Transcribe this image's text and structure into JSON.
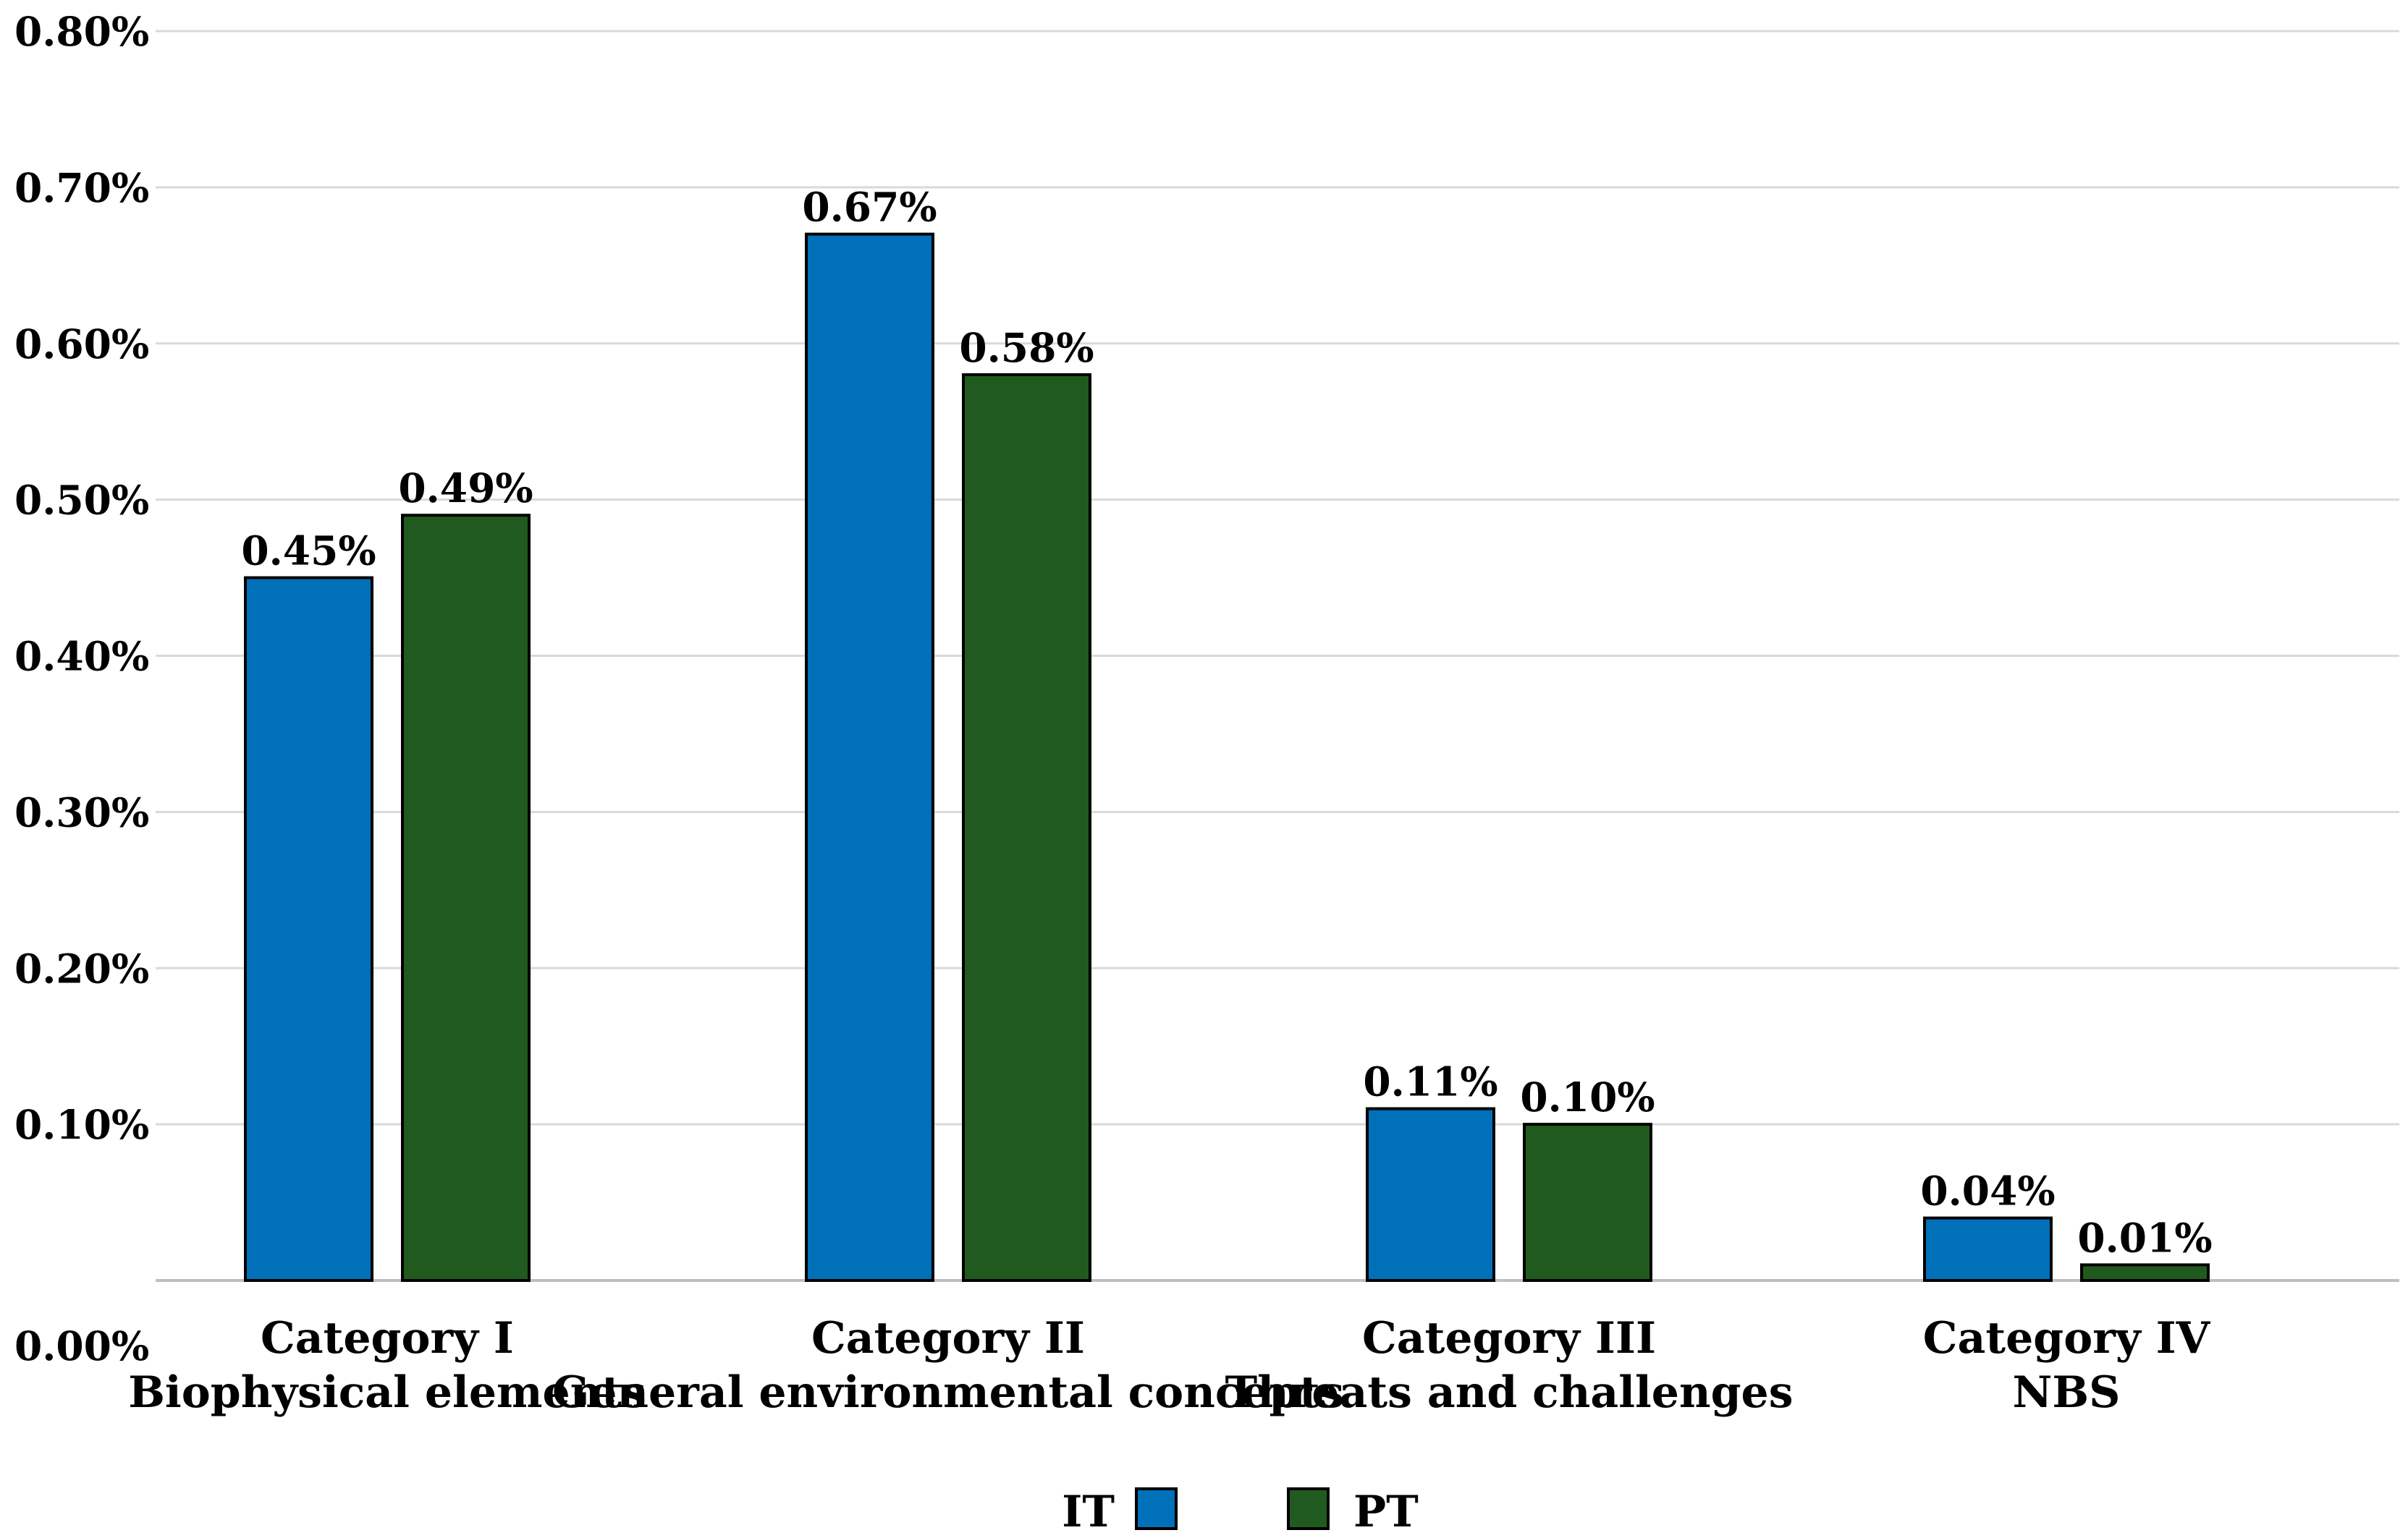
{
  "chart_data": {
    "type": "bar",
    "title": "",
    "xlabel": "",
    "ylabel": "",
    "categories": [
      [
        "Category I",
        "Biophysical elements"
      ],
      [
        "Category II",
        "General environmental concepts"
      ],
      [
        "Category III",
        "Threats and challenges"
      ],
      [
        "Category IV",
        "NBS"
      ]
    ],
    "series": [
      {
        "name": "IT",
        "color": "#0070b8",
        "values": [
          0.45,
          0.67,
          0.11,
          0.04
        ],
        "labels": [
          "0.45%",
          "0.67%",
          "0.11%",
          "0.04%"
        ]
      },
      {
        "name": "PT",
        "color": "#215a1e",
        "values": [
          0.49,
          0.58,
          0.1,
          0.01
        ],
        "labels": [
          "0.49%",
          "0.58%",
          "0.10%",
          "0.01%"
        ]
      }
    ],
    "ylim": [
      0,
      0.8
    ],
    "yticks": [
      0.0,
      0.1,
      0.2,
      0.3,
      0.4,
      0.5,
      0.6,
      0.7,
      0.8
    ],
    "ytick_labels": [
      "0.00%",
      "0.10%",
      "0.20%",
      "0.30%",
      "0.40%",
      "0.50%",
      "0.60%",
      "0.70%",
      "0.80%"
    ],
    "grid": true,
    "legend_position": "bottom-center"
  }
}
